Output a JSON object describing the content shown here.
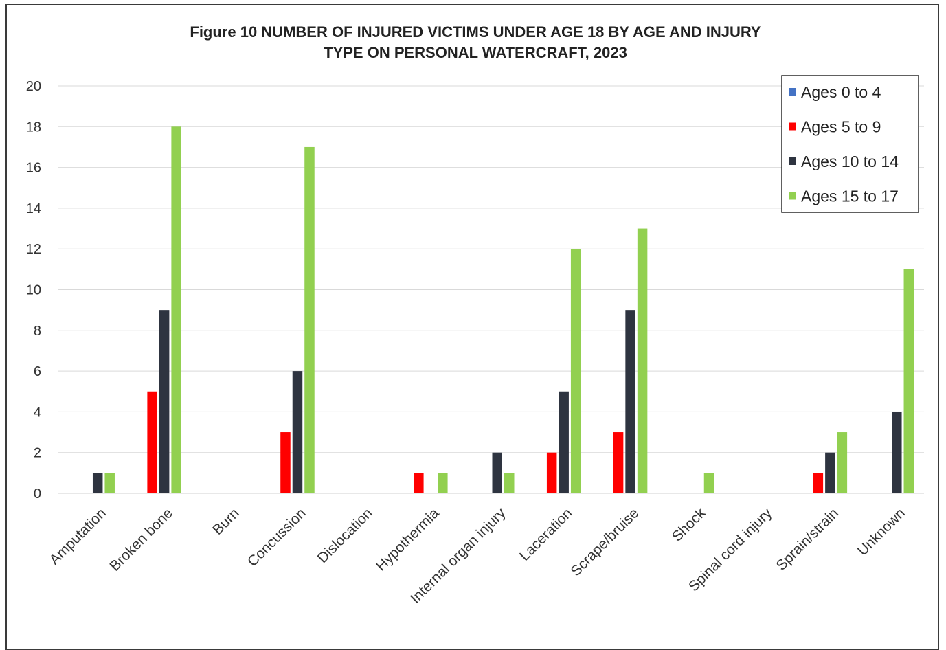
{
  "chart_data": {
    "type": "bar",
    "title_line1": "Figure 10 NUMBER OF INJURED VICTIMS UNDER AGE 18 BY AGE AND INJURY",
    "title_line2": "TYPE ON PERSONAL WATERCRAFT, 2023",
    "xlabel": "",
    "ylabel": "",
    "ylim": [
      0,
      20
    ],
    "yticks": [
      0,
      2,
      4,
      6,
      8,
      10,
      12,
      14,
      16,
      18,
      20
    ],
    "grid": true,
    "legend_position": "top-right",
    "categories": [
      "Amputation",
      "Broken bone",
      "Burn",
      "Concussion",
      "Dislocation",
      "Hypothermia",
      "Internal organ injury",
      "Laceration",
      "Scrape/bruise",
      "Shock",
      "Spinal cord injury",
      "Sprain/strain",
      "Unknown"
    ],
    "series": [
      {
        "name": "Ages 0 to 4",
        "color": "#4472c4",
        "values": [
          0,
          0,
          0,
          0,
          0,
          0,
          0,
          0,
          0,
          0,
          0,
          0,
          0
        ]
      },
      {
        "name": "Ages 5 to 9",
        "color": "#ff0000",
        "values": [
          0,
          5,
          0,
          3,
          0,
          1,
          0,
          2,
          3,
          0,
          0,
          1,
          0
        ]
      },
      {
        "name": "Ages 10 to 14",
        "color": "#2e3440",
        "values": [
          1,
          9,
          0,
          6,
          0,
          0,
          2,
          5,
          9,
          0,
          0,
          2,
          4
        ]
      },
      {
        "name": "Ages 15 to 17",
        "color": "#92d050",
        "values": [
          1,
          18,
          0,
          17,
          0,
          1,
          1,
          12,
          13,
          1,
          0,
          3,
          11
        ]
      }
    ]
  }
}
